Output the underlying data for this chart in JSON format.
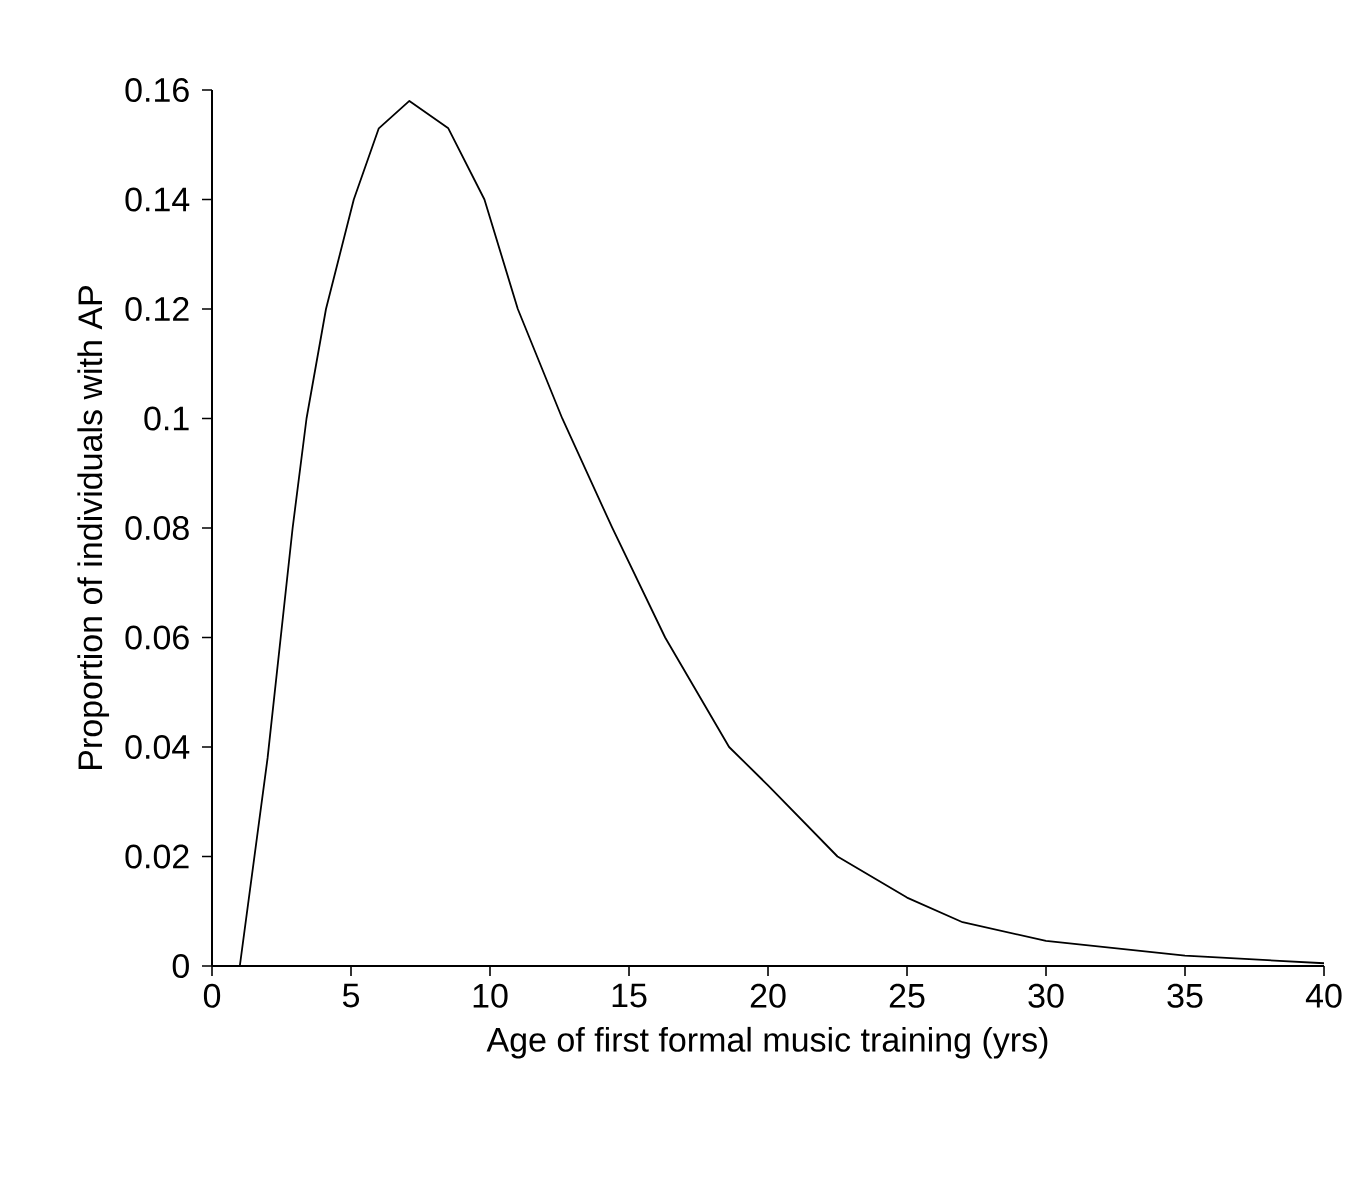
{
  "chart_data": {
    "type": "line",
    "xlabel": "Age of first formal music training (yrs)",
    "ylabel": "Proportion of individuals with AP",
    "x": [
      1,
      2,
      2.9,
      3.4,
      4.1,
      5.1,
      6,
      7.1,
      8.5,
      9.8,
      11,
      12.6,
      14.4,
      16.3,
      18.6,
      20,
      22.5,
      25,
      27,
      30,
      35,
      40
    ],
    "values": [
      0,
      0.038,
      0.08,
      0.1,
      0.12,
      0.14,
      0.153,
      0.158,
      0.153,
      0.14,
      0.12,
      0.1,
      0.08,
      0.06,
      0.04,
      0.033,
      0.02,
      0.0125,
      0.008,
      0.0046,
      0.0019,
      0.0005
    ],
    "color": "#000000",
    "xlim": [
      0,
      40
    ],
    "xticks": [
      0,
      5,
      10,
      15,
      20,
      25,
      30,
      35,
      40
    ],
    "ylim": [
      0,
      0.16
    ],
    "yticks": [
      0,
      0.02,
      0.04,
      0.06,
      0.08,
      0.1,
      0.12,
      0.14,
      0.16
    ]
  }
}
